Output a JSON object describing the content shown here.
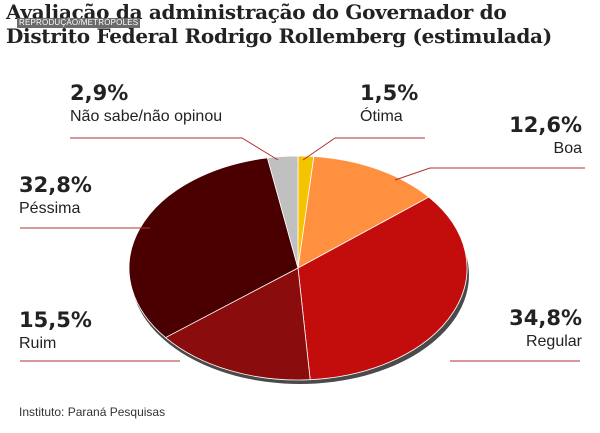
{
  "header": {
    "title": "Avaliação da administração do Governador do Distrito Federal Rodrigo Rollemberg (estimulada)",
    "credit": "REPRODUÇÃO/METRÓPOLES"
  },
  "footer": {
    "source": "Instituto: Paraná Pesquisas"
  },
  "colors": {
    "otima": "#f5c400",
    "boa": "#ff9040",
    "regular": "#c30d0d",
    "ruim": "#8a0c0c",
    "pessima": "#4a0000",
    "nao_sabe": "#c0c0c0",
    "leader_line": "#b03030"
  },
  "chart_data": {
    "type": "pie",
    "title": "Avaliação da administração do Governador do Distrito Federal Rodrigo Rollemberg (estimulada)",
    "slices": [
      {
        "label": "Ótima",
        "value": 1.5,
        "value_label": "1,5%",
        "color": "#f5c400"
      },
      {
        "label": "Boa",
        "value": 12.6,
        "value_label": "12,6%",
        "color": "#ff9040"
      },
      {
        "label": "Regular",
        "value": 34.8,
        "value_label": "34,8%",
        "color": "#c30d0d"
      },
      {
        "label": "Ruim",
        "value": 15.5,
        "value_label": "15,5%",
        "color": "#8a0c0c"
      },
      {
        "label": "Péssima",
        "value": 32.8,
        "value_label": "32,8%",
        "color": "#4a0000"
      },
      {
        "label": "Não sabe/não opinou",
        "value": 2.9,
        "value_label": "2,9%",
        "color": "#c0c0c0"
      }
    ]
  }
}
